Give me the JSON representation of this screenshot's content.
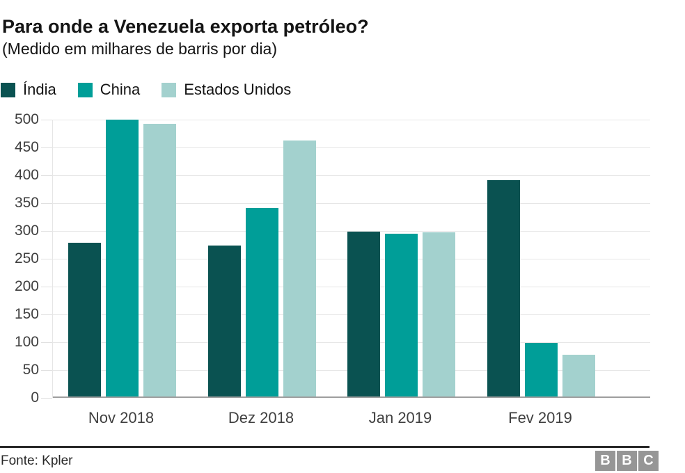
{
  "header": {
    "title": "Para onde a Venezuela exporta petróleo?",
    "subtitle": "(Medido em milhares de barris por dia)"
  },
  "chart_data": {
    "type": "bar",
    "title": "Para onde a Venezuela exporta petróleo?",
    "subtitle": "(Medido em milhares de barris por dia)",
    "categories": [
      "Nov 2018",
      "Dez 2018",
      "Jan 2019",
      "Fev 2019"
    ],
    "series": [
      {
        "name": "Índia",
        "color": "#0a5251",
        "values": [
          279,
          274,
          299,
          391
        ]
      },
      {
        "name": "China",
        "color": "#009e98",
        "values": [
          500,
          341,
          295,
          99
        ]
      },
      {
        "name": "Estados Unidos",
        "color": "#a3d1ce",
        "values": [
          492,
          462,
          298,
          77
        ]
      }
    ],
    "xlabel": "",
    "ylabel": "",
    "ylim": [
      0,
      500
    ],
    "ytick_step": 50,
    "grid": true,
    "legend_position": "top"
  },
  "footer": {
    "source": "Fonte: Kpler",
    "logo_letters": [
      "B",
      "B",
      "C"
    ],
    "logo_color": "#969696"
  },
  "colors": {
    "grid": "#e6e6e6",
    "axis_baseline": "#9e9e9e",
    "tick_text": "#404040",
    "text": "#141414"
  }
}
